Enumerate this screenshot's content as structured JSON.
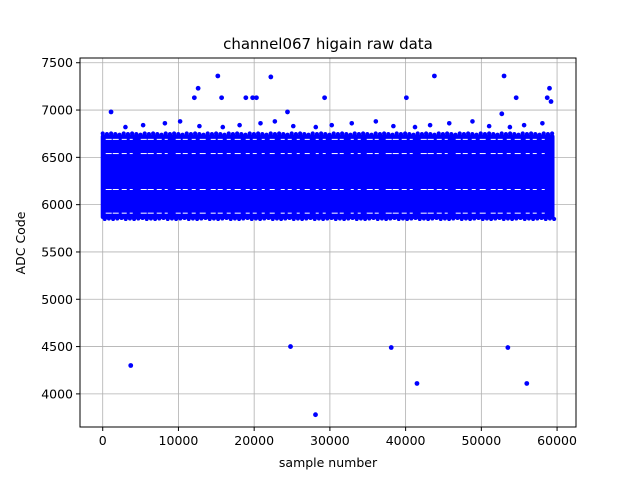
{
  "chart_data": {
    "type": "scatter",
    "title": "channel067 higain raw data",
    "xlabel": "sample number",
    "ylabel": "ADC Code",
    "xlim": [
      -3000,
      62500
    ],
    "ylim": [
      3650,
      7550
    ],
    "xticks": [
      0,
      10000,
      20000,
      30000,
      40000,
      50000,
      60000
    ],
    "yticks": [
      4000,
      4500,
      5000,
      5500,
      6000,
      6500,
      7000,
      7500
    ],
    "grid": true,
    "marker_color": "#0000ff",
    "bulk_band": {
      "x_range": [
        0,
        59400
      ],
      "y_range": [
        5870,
        6720
      ],
      "gap_levels": [
        5910,
        6160,
        6540,
        6690
      ]
    },
    "outliers": [
      {
        "x": 1100,
        "y": 6980
      },
      {
        "x": 3700,
        "y": 4300
      },
      {
        "x": 12100,
        "y": 7130
      },
      {
        "x": 12600,
        "y": 7230
      },
      {
        "x": 15200,
        "y": 7360
      },
      {
        "x": 15700,
        "y": 7130
      },
      {
        "x": 18900,
        "y": 7130
      },
      {
        "x": 19800,
        "y": 7130
      },
      {
        "x": 20300,
        "y": 7130
      },
      {
        "x": 22200,
        "y": 7350
      },
      {
        "x": 24400,
        "y": 6980
      },
      {
        "x": 24800,
        "y": 4500
      },
      {
        "x": 28100,
        "y": 3780
      },
      {
        "x": 29300,
        "y": 7130
      },
      {
        "x": 38100,
        "y": 4490
      },
      {
        "x": 40100,
        "y": 7130
      },
      {
        "x": 41500,
        "y": 4110
      },
      {
        "x": 43800,
        "y": 7360
      },
      {
        "x": 52700,
        "y": 6960
      },
      {
        "x": 53000,
        "y": 7360
      },
      {
        "x": 53500,
        "y": 4490
      },
      {
        "x": 54600,
        "y": 7130
      },
      {
        "x": 56000,
        "y": 4110
      },
      {
        "x": 58700,
        "y": 7130
      },
      {
        "x": 59000,
        "y": 7230
      },
      {
        "x": 59200,
        "y": 7090
      }
    ]
  }
}
